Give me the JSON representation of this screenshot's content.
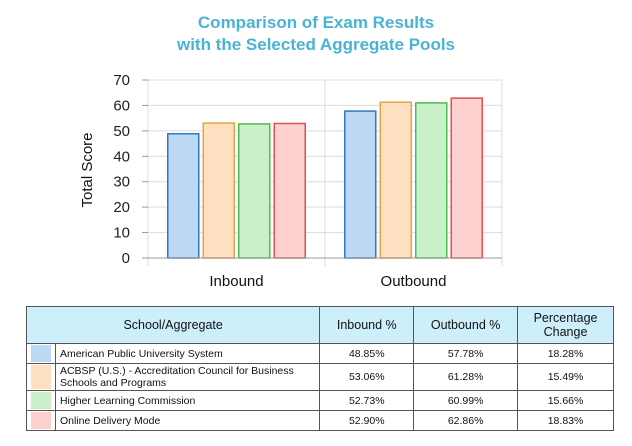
{
  "chart_data": {
    "type": "bar",
    "title": "Comparison of Exam Results\nwith the Selected Aggregate Pools",
    "title_lines": [
      "Comparison of Exam Results",
      "with the Selected Aggregate Pools"
    ],
    "categories": [
      "Inbound",
      "Outbound"
    ],
    "ylabel": "Total Score",
    "ylim": [
      0,
      70
    ],
    "yticks": [
      0,
      10,
      20,
      30,
      40,
      50,
      60,
      70
    ],
    "grid": true,
    "series": [
      {
        "name": "American Public University System",
        "values": [
          48.85,
          57.78
        ],
        "fill": "#bcd8f4",
        "stroke": "#2f79c0"
      },
      {
        "name": "ACBSP (U.S.) - Accreditation Council for Business Schools and Programs",
        "values": [
          53.06,
          61.28
        ],
        "fill": "#fde0c0",
        "stroke": "#e9a14a"
      },
      {
        "name": "Higher Learning Commission",
        "values": [
          52.73,
          60.99
        ],
        "fill": "#c9f0c9",
        "stroke": "#4dbb56"
      },
      {
        "name": "Online Delivery Mode",
        "values": [
          52.9,
          62.86
        ],
        "fill": "#ffd0d0",
        "stroke": "#e0514f"
      }
    ]
  },
  "table": {
    "headers": [
      "School/Aggregate",
      "Inbound %",
      "Outbound %",
      "Percentage Change"
    ],
    "rows": [
      {
        "name": "American Public University System",
        "inbound": "48.85%",
        "outbound": "57.78%",
        "change": "18.28%",
        "color": "#bcd8f4"
      },
      {
        "name": "ACBSP (U.S.) - Accreditation Council for Business Schools and Programs",
        "inbound": "53.06%",
        "outbound": "61.28%",
        "change": "15.49%",
        "color": "#fde0c0"
      },
      {
        "name": "Higher Learning Commission",
        "inbound": "52.73%",
        "outbound": "60.99%",
        "change": "15.66%",
        "color": "#c9f0c9"
      },
      {
        "name": "Online Delivery Mode",
        "inbound": "52.90%",
        "outbound": "62.86%",
        "change": "18.83%",
        "color": "#ffd0d0"
      }
    ]
  }
}
